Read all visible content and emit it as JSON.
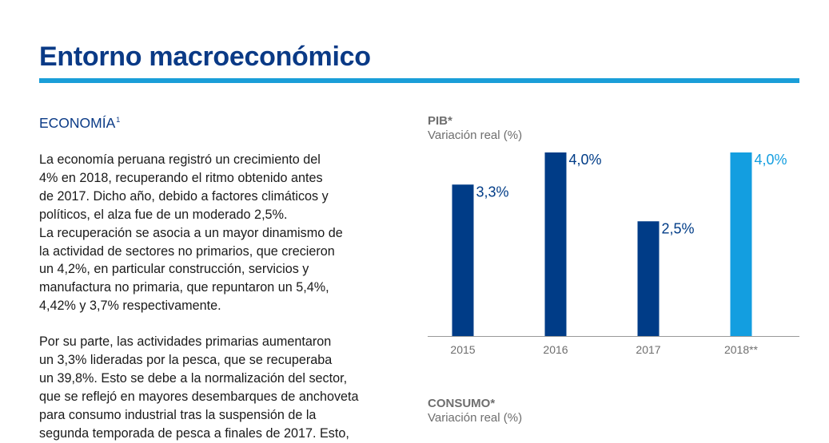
{
  "page": {
    "title": "Entorno macroeconómico"
  },
  "section": {
    "heading": "ECONOMÍA",
    "footnote_mark": "1"
  },
  "paragraphs": {
    "p1": [
      "La economía peruana registró un crecimiento del",
      "4% en 2018, recuperando el ritmo obtenido antes",
      "de 2017. Dicho año, debido a factores climáticos y",
      "políticos, el alza fue de un moderado 2,5%.",
      "La recuperación se asocia a un mayor dinamismo de",
      "la actividad de sectores no primarios, que crecieron",
      "un 4,2%, en particular construcción, servicios y",
      "manufactura no primaria, que repuntaron un 5,4%,",
      "4,42% y 3,7% respectivamente."
    ],
    "p2": [
      "Por su parte, las actividades primarias aumentaron",
      "un 3,3% lideradas por la pesca, que se recuperaba",
      "un 39,8%. Esto se debe a la normalización del sector,",
      "que se reflejó en mayores desembarques de anchoveta",
      "para consumo industrial tras la suspensión de la",
      "segunda temporada de pesca a finales de 2017. Esto,"
    ]
  },
  "charts": {
    "pib": {
      "title": "PIB*",
      "subtitle": "Variación real (%)"
    },
    "consumo": {
      "title": "CONSUMO*",
      "subtitle": "Variación real (%)"
    }
  },
  "colors": {
    "primary_bar": "#003c87",
    "highlight_bar": "#139ee0",
    "heading": "#0a3a86",
    "rule": "#1a9ed8",
    "axis_text": "#6e6e6e"
  },
  "chart_data": {
    "type": "bar",
    "title": "PIB*",
    "subtitle": "Variación real (%)",
    "categories": [
      "2015",
      "2016",
      "2017",
      "2018**"
    ],
    "values": [
      3.3,
      4.0,
      2.5,
      4.0
    ],
    "data_labels": [
      "3,3%",
      "4,0%",
      "2,5%",
      "4,0%"
    ],
    "highlight_index": 3,
    "ylim": [
      0,
      4.0
    ],
    "xlabel": "",
    "ylabel": "",
    "grid": false,
    "legend": "none"
  }
}
